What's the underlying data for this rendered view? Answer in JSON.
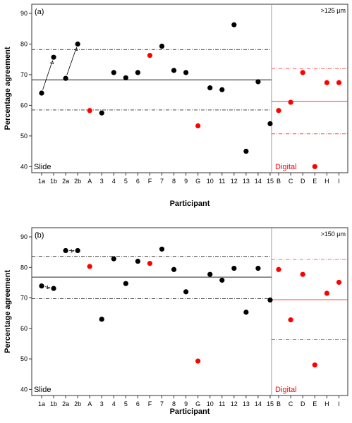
{
  "chart_data": [
    {
      "type": "scatter",
      "panel_label": "(a)",
      "threshold_label": ">125 µm",
      "xlabel": "Participant",
      "ylabel": "Percentage agreement",
      "ylim": [
        38,
        93
      ],
      "yticks": [
        40,
        50,
        60,
        70,
        80,
        90
      ],
      "slide_label": "Slide",
      "digital_label": "Digital",
      "slide_categories": [
        "1a",
        "1b",
        "2a",
        "2b",
        "A",
        "3",
        "4",
        "5",
        "6",
        "F",
        "7",
        "8",
        "9",
        "G",
        "10",
        "11",
        "12",
        "13",
        "14",
        "15"
      ],
      "slide_values": [
        64.0,
        75.7,
        68.8,
        80.0,
        58.3,
        57.5,
        70.7,
        69.0,
        70.7,
        76.3,
        79.3,
        71.4,
        70.7,
        53.3,
        65.7,
        65.1,
        86.3,
        45.0,
        67.7,
        54.0
      ],
      "slide_red": [
        "A",
        "F",
        "G"
      ],
      "slide_mean": 68.3,
      "slide_band": [
        58.5,
        78.2
      ],
      "digital_categories": [
        "B",
        "C",
        "D",
        "E",
        "H",
        "I"
      ],
      "digital_values": [
        58.3,
        61.0,
        70.7,
        40.0,
        67.4,
        67.4
      ],
      "digital_mean": 61.3,
      "digital_band": [
        50.7,
        72.0
      ],
      "arrows": [
        [
          "1a",
          "1b"
        ],
        [
          "2a",
          "2b"
        ]
      ],
      "colors": {
        "slide": "#000000",
        "digital": "#ff0000",
        "mean": "#555555"
      }
    },
    {
      "type": "scatter",
      "panel_label": "(b)",
      "threshold_label": ">150 µm",
      "xlabel": "Participant",
      "ylabel": "Percentage agreement",
      "ylim": [
        38,
        93
      ],
      "yticks": [
        40,
        50,
        60,
        70,
        80,
        90
      ],
      "slide_label": "Slide",
      "digital_label": "Digital",
      "slide_categories": [
        "1a",
        "1b",
        "2a",
        "2b",
        "A",
        "3",
        "4",
        "5",
        "6",
        "F",
        "7",
        "8",
        "9",
        "G",
        "10",
        "11",
        "12",
        "13",
        "14",
        "15"
      ],
      "slide_values": [
        73.9,
        73.1,
        85.5,
        85.5,
        80.3,
        63.0,
        82.8,
        74.7,
        82.0,
        81.3,
        86.0,
        79.3,
        72.0,
        49.3,
        77.7,
        75.8,
        79.7,
        65.3,
        79.7,
        69.3
      ],
      "slide_red": [
        "A",
        "F",
        "G"
      ],
      "slide_mean": 76.8,
      "slide_band": [
        69.8,
        83.6
      ],
      "digital_categories": [
        "B",
        "C",
        "D",
        "E",
        "H",
        "I"
      ],
      "digital_values": [
        79.3,
        62.8,
        77.7,
        48.0,
        71.5,
        75.1
      ],
      "digital_mean": 69.4,
      "digital_band": [
        56.4,
        82.6
      ],
      "arrows": [
        [
          "1a",
          "1b"
        ],
        [
          "2a",
          "2b"
        ]
      ],
      "colors": {
        "slide": "#000000",
        "digital": "#ff0000",
        "mean": "#555555"
      }
    }
  ]
}
